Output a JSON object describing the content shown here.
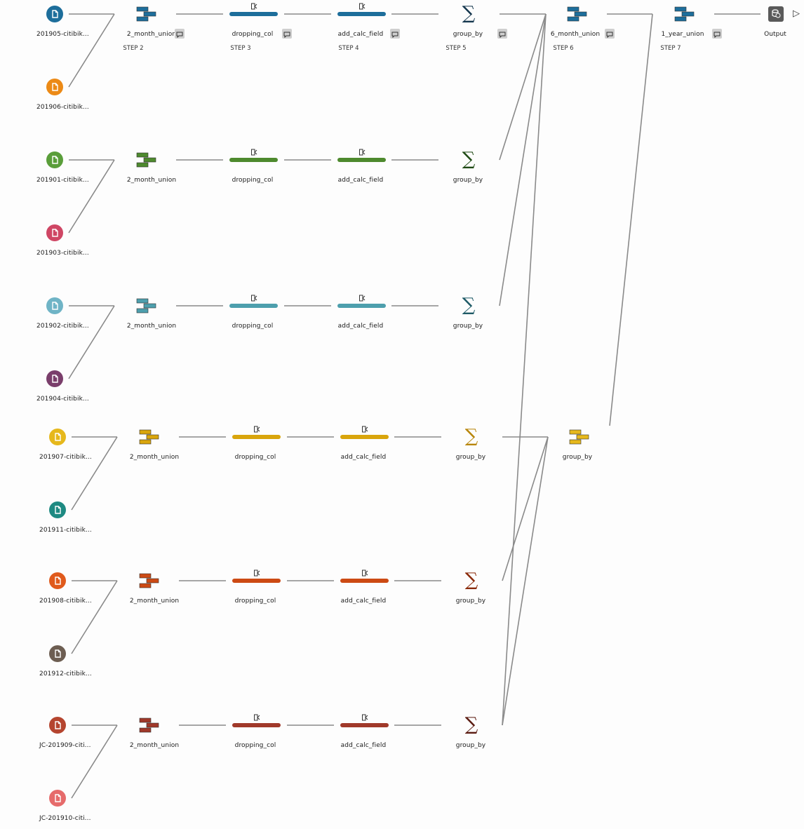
{
  "colors": {
    "row_blue": "#1d6e9b",
    "row_green": "#4e8a2e",
    "row_teal": "#4d9fad",
    "row_yellow": "#d9a50c",
    "row_orange": "#cc4a14",
    "row_darkred": "#a0392a",
    "link": "#8a8a8a"
  },
  "inputs": [
    {
      "label": "201905-citibik...",
      "color": "#1d6e9b"
    },
    {
      "label": "201906-citibik...",
      "color": "#ec8a16"
    },
    {
      "label": "201901-citibik...",
      "color": "#5a9e3a"
    },
    {
      "label": "201903-citibik...",
      "color": "#cf4664"
    },
    {
      "label": "201902-citibik...",
      "color": "#6fb4c6"
    },
    {
      "label": "201904-citibik...",
      "color": "#7a3e6b"
    },
    {
      "label": "201907-citibik...",
      "color": "#e6b81c"
    },
    {
      "label": "201911-citibik...",
      "color": "#1e8a82"
    },
    {
      "label": "201908-citibik...",
      "color": "#e05a1c"
    },
    {
      "label": "201912-citibik...",
      "color": "#6d5e52"
    },
    {
      "label": "JC-201909-citi...",
      "color": "#b5452f"
    },
    {
      "label": "JC-201910-citi...",
      "color": "#e66b6b"
    }
  ],
  "rows": [
    {
      "color": "#1d6e9b",
      "union": "2_month_union",
      "drop": "dropping_col",
      "calc": "add_calc_field",
      "group": "group_by",
      "sigma_color": "#14364d",
      "steps": {
        "union": "STEP 2",
        "drop": "STEP 3",
        "calc": "STEP 4",
        "group": "STEP 5"
      }
    },
    {
      "color": "#4e8a2e",
      "union": "2_month_union",
      "drop": "dropping_col",
      "calc": "add_calc_field",
      "group": "group_by",
      "sigma_color": "#1f4a14"
    },
    {
      "color": "#4d9fad",
      "union": "2_month_union",
      "drop": "dropping_col",
      "calc": "add_calc_field",
      "group": "group_by",
      "sigma_color": "#1e5a66"
    },
    {
      "color": "#d9a50c",
      "union": "2_month_union",
      "drop": "dropping_col",
      "calc": "add_calc_field",
      "group": "group_by",
      "sigma_color": "#b8860b"
    },
    {
      "color": "#cc4a14",
      "union": "2_month_union",
      "drop": "dropping_col",
      "calc": "add_calc_field",
      "group": "group_by",
      "sigma_color": "#8a2a0a"
    },
    {
      "color": "#a0392a",
      "union": "2_month_union",
      "drop": "dropping_col",
      "calc": "add_calc_field",
      "group": "group_by",
      "sigma_color": "#5a1a10"
    }
  ],
  "merge_top": {
    "label": "6_month_union",
    "step": "STEP 6",
    "color": "#1d6e9b"
  },
  "merge_bottom": {
    "label": "group_by",
    "color": "#e6b81c"
  },
  "final_union": {
    "label": "1_year_union",
    "step": "STEP 7",
    "color": "#1d6e9b"
  },
  "output": {
    "label": "Output"
  },
  "icons": {
    "file": "file-icon",
    "union": "union-icon",
    "clean": "clean-step-icon",
    "aggregate": "sigma-icon",
    "annotation": "annotation-icon",
    "output": "output-icon",
    "run": "play-icon"
  }
}
